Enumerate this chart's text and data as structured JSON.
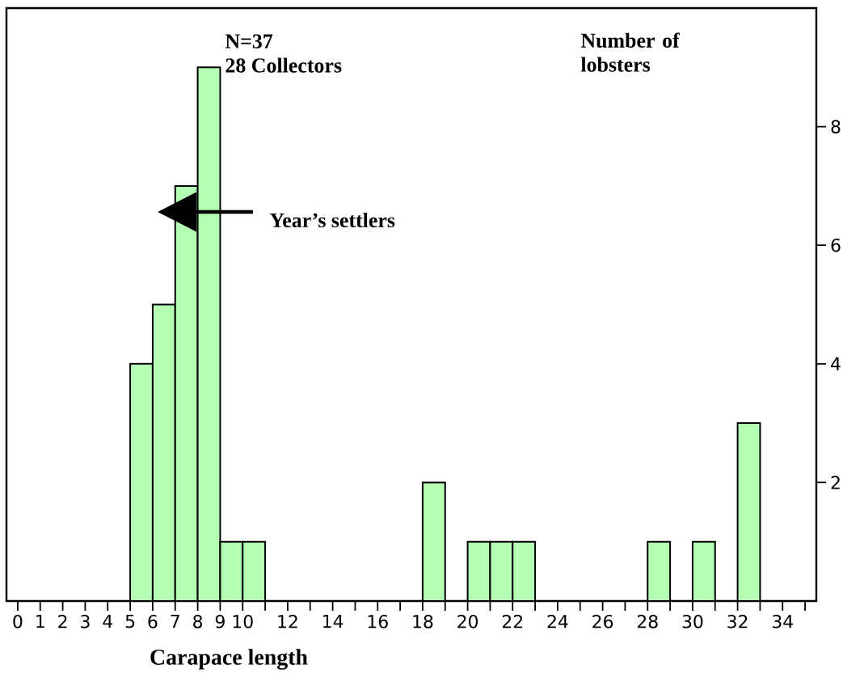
{
  "chart_data": {
    "type": "histogram",
    "xlabel": "Carapace length",
    "ylabel": "Number of lobsters",
    "annotations": [
      "N=37",
      "28 Collectors",
      "Year’s settlers"
    ],
    "bins": [
      5,
      6,
      7,
      8,
      9,
      10,
      11,
      12,
      13,
      14,
      15,
      16,
      17,
      18,
      19,
      20,
      21,
      22,
      23,
      24,
      25,
      26,
      27,
      28,
      29,
      30,
      31,
      32,
      33
    ],
    "values": [
      4,
      5,
      7,
      9,
      1,
      1,
      0,
      0,
      0,
      0,
      0,
      0,
      0,
      2,
      0,
      1,
      1,
      1,
      0,
      0,
      0,
      0,
      0,
      1,
      0,
      1,
      0,
      3
    ],
    "color": "#b4ffb4",
    "xlim": [
      -0.5,
      35.5
    ],
    "ylim": [
      0,
      10
    ],
    "xticks": [
      0,
      1,
      2,
      3,
      4,
      5,
      6,
      7,
      8,
      9,
      10,
      {
        "value": 11,
        "label": null
      },
      12,
      {
        "value": 13,
        "label": null
      },
      14,
      {
        "value": 15,
        "label": null
      },
      16,
      {
        "value": 17,
        "label": null
      },
      18,
      {
        "value": 19,
        "label": null
      },
      20,
      {
        "value": 21,
        "label": null
      },
      22,
      {
        "value": 23,
        "label": null
      },
      24,
      {
        "value": 25,
        "label": null
      },
      26,
      {
        "value": 27,
        "label": null
      },
      28,
      {
        "value": 29,
        "label": null
      },
      30,
      {
        "value": 31,
        "label": null
      },
      32,
      {
        "value": 33,
        "label": null
      },
      34,
      {
        "value": 35,
        "label": null
      }
    ],
    "yticks": [
      2,
      4,
      6,
      8
    ]
  }
}
